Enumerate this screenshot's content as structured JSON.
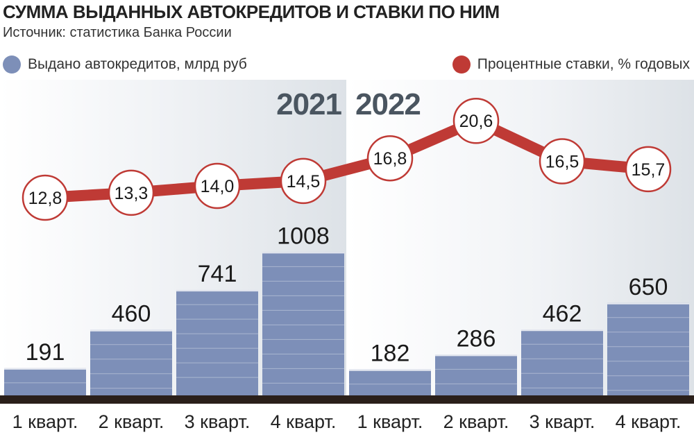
{
  "title": "СУММА ВЫДАННЫХ АВТОКРЕДИТОВ И СТАВКИ ПО НИМ",
  "subtitle": "Источник: статистика Банка России",
  "legend": {
    "bars_label": "Выдано автокредитов, млрд руб",
    "line_label": "Процентные ставки, % годовых"
  },
  "colors": {
    "bar": "#7d8fb8",
    "line": "#bf3a35",
    "background_shade": "#dde2e7",
    "baseline": "#2a1f1a",
    "year_label": "#4a5560"
  },
  "chart_data": {
    "type": "bar",
    "categories": [
      "1 кварт.",
      "2 кварт.",
      "3 кварт.",
      "4 кварт.",
      "1 кварт.",
      "2 кварт.",
      "3 кварт.",
      "4 кварт."
    ],
    "years": [
      {
        "label": "2021",
        "from": 0,
        "to": 3
      },
      {
        "label": "2022",
        "from": 4,
        "to": 7
      }
    ],
    "series": [
      {
        "name": "Выдано автокредитов, млрд руб",
        "type": "bar",
        "values": [
          191,
          460,
          741,
          1008,
          182,
          286,
          462,
          650
        ],
        "labels": [
          "191",
          "460",
          "741",
          "1008",
          "182",
          "286",
          "462",
          "650"
        ]
      },
      {
        "name": "Процентные ставки, % годовых",
        "type": "line",
        "values": [
          12.8,
          13.3,
          14.0,
          14.5,
          16.8,
          20.6,
          16.5,
          15.7
        ],
        "labels": [
          "12,8",
          "13,3",
          "14,0",
          "14,5",
          "16,8",
          "20,6",
          "16,5",
          "15,7"
        ]
      }
    ],
    "legend_position": "top",
    "grid": false
  }
}
